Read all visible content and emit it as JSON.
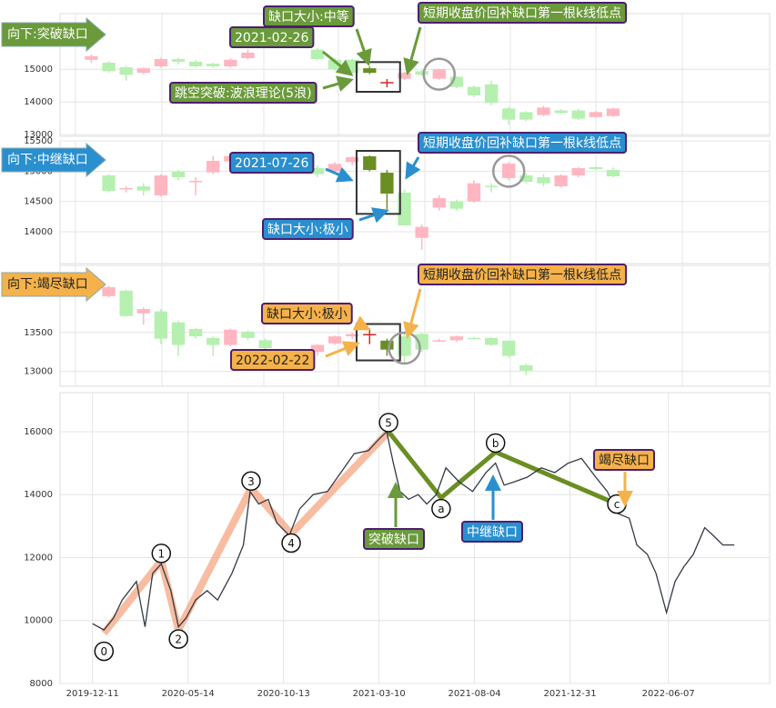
{
  "chart_data": [
    {
      "type": "candlestick",
      "tag": "向下:突破缺口",
      "tag_color": "#6a9a3a",
      "tag_text_color": "#ffffff",
      "x": [
        0,
        1,
        2,
        3,
        4,
        5,
        6,
        7,
        8,
        9,
        13,
        14,
        15,
        16,
        17,
        18,
        19,
        20,
        21,
        22,
        23,
        24,
        25,
        26,
        27,
        28,
        29,
        30
      ],
      "open": [
        15290,
        15200,
        15060,
        14890,
        15090,
        15310,
        15230,
        15170,
        15090,
        15340,
        15600,
        15290,
        15290,
        15030,
        14600,
        14710,
        14940,
        14710,
        14770,
        14460,
        14540,
        13800,
        13690,
        13600,
        13740,
        13740,
        13540,
        13570
      ],
      "high": [
        15450,
        15250,
        15100,
        15050,
        15350,
        15350,
        15280,
        15200,
        15330,
        15600,
        15650,
        15350,
        15320,
        15080,
        14700,
        14920,
        14980,
        15020,
        14800,
        14500,
        14650,
        13850,
        13720,
        13880,
        13780,
        13780,
        13720,
        13820
      ],
      "low": [
        15200,
        14900,
        14650,
        14850,
        15050,
        15150,
        15050,
        15050,
        15050,
        15300,
        15280,
        14950,
        14850,
        14850,
        14450,
        14680,
        14800,
        14680,
        14420,
        14150,
        13900,
        13300,
        13420,
        13570,
        13640,
        13450,
        13510,
        13540
      ],
      "close": [
        15400,
        14940,
        14830,
        15030,
        15310,
        15230,
        15090,
        15090,
        15290,
        15510,
        15310,
        15000,
        14890,
        14890,
        14610,
        14890,
        14830,
        15000,
        14460,
        14200,
        13970,
        13460,
        13460,
        13830,
        13660,
        13490,
        13690,
        13800
      ],
      "up_color": "#ffb6c1",
      "down_color": "#b5f0b0",
      "gap_up_color": "#d62728",
      "gap_down_color": "#6b8e23",
      "gap_candles": [
        13,
        14
      ],
      "refill_candle": 17,
      "xlim": [
        -1.8,
        39
      ],
      "ylim": [
        12950,
        16700
      ],
      "yticks": [
        13000,
        14000,
        15000
      ],
      "grid": true,
      "annotations": [
        {
          "text": "缺口大小:中等",
          "color": "#6a9a3a",
          "text_color": "#ffffff"
        },
        {
          "text": "2021-02-26",
          "color": "#6a9a3a",
          "text_color": "#ffffff"
        },
        {
          "text": "跳空突破:波浪理论(5浪)",
          "color": "#6a9a3a",
          "text_color": "#ffffff"
        },
        {
          "text": "短期收盘价回补缺口第一根k线低点",
          "color": "#6a9a3a",
          "text_color": "#ffffff"
        }
      ]
    },
    {
      "type": "candlestick",
      "tag": "向下:中继缺口",
      "tag_color": "#2a8fcf",
      "tag_text_color": "#ffffff",
      "x": [
        1,
        2,
        3,
        4,
        5,
        6,
        7,
        8,
        9,
        10,
        13,
        14,
        15,
        16,
        17,
        18,
        19,
        20,
        21,
        22,
        23,
        24,
        25,
        26,
        27,
        28,
        29,
        30
      ],
      "open": [
        14930,
        14700,
        14750,
        14600,
        14990,
        14820,
        14980,
        15160,
        15270,
        15100,
        15050,
        15000,
        15150,
        15245,
        14975,
        14645,
        13900,
        14400,
        14500,
        14500,
        14760,
        14885,
        14930,
        14900,
        14750,
        14930,
        15065,
        15020
      ],
      "high": [
        14950,
        14750,
        14800,
        14950,
        15020,
        14900,
        15250,
        15300,
        15300,
        15200,
        15100,
        15150,
        15250,
        15260,
        15020,
        14700,
        14120,
        14600,
        14530,
        14850,
        14800,
        15150,
        14960,
        14950,
        14950,
        15070,
        15080,
        15060
      ],
      "low": [
        14650,
        14650,
        14600,
        14580,
        14850,
        14600,
        14950,
        15100,
        15100,
        15050,
        14900,
        14980,
        15100,
        15000,
        14370,
        14100,
        13700,
        14350,
        14350,
        14480,
        14650,
        14850,
        14800,
        14750,
        14730,
        14900,
        15020,
        14900
      ],
      "close": [
        14675,
        14720,
        14680,
        14930,
        14900,
        14840,
        15170,
        15250,
        15160,
        15150,
        14950,
        15120,
        15230,
        15020,
        14630,
        14105,
        14080,
        14555,
        14380,
        14800,
        14740,
        15125,
        14825,
        14800,
        14930,
        15050,
        15035,
        14915
      ],
      "up_color": "#ffb6c1",
      "down_color": "#b5f0b0",
      "gap_up_color": "#d62728",
      "gap_down_color": "#6b8e23",
      "gap_candles": [
        13,
        14
      ],
      "refill_candle": 21,
      "xlim": [
        -1.8,
        39
      ],
      "ylim": [
        13475,
        15500
      ],
      "yticks": [
        14000,
        14500,
        15000,
        15500
      ],
      "grid": true,
      "annotations": [
        {
          "text": "2021-07-26",
          "color": "#2a8fcf",
          "text_color": "#ffffff"
        },
        {
          "text": "短期收盘价回补缺口第一根k线低点",
          "color": "#2a8fcf",
          "text_color": "#ffffff"
        },
        {
          "text": "缺口大小:极小",
          "color": "#2a8fcf",
          "text_color": "#ffffff"
        }
      ]
    },
    {
      "type": "candlestick",
      "tag": "向下:竭尽缺口",
      "tag_color": "#f5b24a",
      "tag_text_color": "#222222",
      "x": [
        1,
        2,
        3,
        4,
        5,
        6,
        7,
        8,
        9,
        10,
        13,
        14,
        15,
        16,
        17,
        18,
        19,
        20,
        21,
        22,
        23,
        24,
        25
      ],
      "open": [
        13965,
        14035,
        13745,
        13770,
        13630,
        13545,
        13430,
        13340,
        13510,
        13400,
        13250,
        13360,
        13450,
        13470,
        13395,
        13450,
        13480,
        13390,
        13400,
        13430,
        13430,
        13395,
        13080
      ],
      "high": [
        14100,
        14050,
        13820,
        13800,
        13650,
        13560,
        13450,
        13550,
        13530,
        13420,
        13350,
        13460,
        13500,
        13550,
        13420,
        13500,
        13500,
        13420,
        13460,
        13440,
        13440,
        13400,
        13100
      ],
      "low": [
        13950,
        13700,
        13600,
        13350,
        13200,
        13420,
        13200,
        13320,
        13400,
        13280,
        13200,
        13340,
        13420,
        13350,
        13200,
        13100,
        13250,
        13380,
        13380,
        13410,
        13330,
        13180,
        12950
      ],
      "close": [
        14080,
        13710,
        13800,
        13420,
        13340,
        13450,
        13340,
        13535,
        13430,
        13300,
        13340,
        13450,
        13480,
        13480,
        13280,
        13200,
        13280,
        13400,
        13450,
        13420,
        13340,
        13200,
        13010
      ],
      "up_color": "#ffb6c1",
      "down_color": "#b5f0b0",
      "gap_up_color": "#d62728",
      "gap_down_color": "#6b8e23",
      "gap_candles": [
        13,
        14
      ],
      "refill_candle": 15,
      "xlim": [
        -1.8,
        39
      ],
      "ylim": [
        12810,
        14360
      ],
      "yticks": [
        13000,
        13500
      ],
      "grid": true,
      "annotations": [
        {
          "text": "缺口大小:极小",
          "color": "#f5b24a",
          "text_color": "#222222"
        },
        {
          "text": "2022-02-22",
          "color": "#f5b24a",
          "text_color": "#222222"
        },
        {
          "text": "短期收盘价回补缺口第一根k线低点",
          "color": "#f5b24a",
          "text_color": "#222222"
        }
      ]
    },
    {
      "type": "line",
      "color": "#333a44",
      "x": [
        0,
        12,
        22,
        31,
        46,
        55,
        63,
        72,
        82,
        90,
        98,
        108,
        120,
        131,
        146,
        158,
        165,
        174,
        184,
        193,
        206,
        217,
        231,
        246,
        260,
        274,
        289,
        298,
        308,
        315,
        322,
        331,
        341,
        350,
        360,
        370,
        384,
        398,
        412,
        422,
        431,
        441,
        455,
        470,
        484,
        498,
        512,
        527,
        539,
        550,
        562,
        570,
        581,
        590,
        601,
        610,
        619,
        629,
        641,
        650,
        660,
        672
      ],
      "values": [
        9900,
        9700,
        10080,
        10650,
        11240,
        9800,
        11500,
        11800,
        10950,
        9800,
        10080,
        10650,
        10950,
        10650,
        11500,
        12400,
        14100,
        13700,
        13850,
        13100,
        12700,
        13550,
        14000,
        14100,
        14700,
        15300,
        15400,
        15700,
        16000,
        15000,
        14100,
        13850,
        14000,
        13700,
        14000,
        14850,
        14400,
        14100,
        14700,
        15000,
        14300,
        14400,
        14550,
        14850,
        14700,
        15000,
        15150,
        14550,
        14100,
        13400,
        13250,
        12400,
        12100,
        11500,
        10250,
        11240,
        11700,
        12100,
        12950,
        12700,
        12400,
        12400
      ],
      "xlim": [
        -34,
        709
      ],
      "xticks": [
        {
          "value": 0,
          "label": "2019-12-11"
        },
        {
          "value": 100,
          "label": "2020-05-14"
        },
        {
          "value": 200,
          "label": "2020-10-13"
        },
        {
          "value": 300,
          "label": "2021-03-10"
        },
        {
          "value": 400,
          "label": "2021-08-04"
        },
        {
          "value": 500,
          "label": "2021-12-31"
        },
        {
          "value": 603,
          "label": "2022-06-07"
        }
      ],
      "ylim": [
        8000,
        17240
      ],
      "yticks": [
        8000,
        10000,
        12000,
        14000,
        16000
      ],
      "grid": true,
      "waves": [
        {
          "color": "#f4a582",
          "labels": [
            "0",
            "1",
            "2",
            "3",
            "4",
            "5"
          ],
          "x": [
            12,
            72,
            90,
            166,
            208,
            310
          ],
          "values": [
            9600,
            11900,
            9700,
            14200,
            12750,
            16000
          ]
        },
        {
          "color": "#6b8e23",
          "labels": [
            "a",
            "b",
            "c"
          ],
          "x": [
            365,
            422,
            549
          ],
          "values": [
            13900,
            15350,
            13700
          ]
        }
      ],
      "annotations": [
        {
          "text": "突破缺口",
          "color": "#6a9a3a",
          "text_color": "#ffffff"
        },
        {
          "text": "中继缺口",
          "color": "#2a8fcf",
          "text_color": "#ffffff"
        },
        {
          "text": "竭尽缺口",
          "color": "#f5b24a",
          "text_color": "#222222"
        }
      ]
    }
  ]
}
